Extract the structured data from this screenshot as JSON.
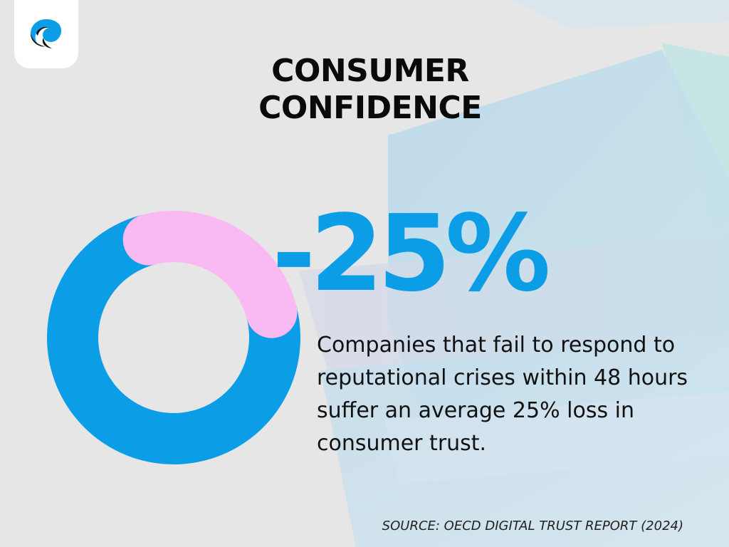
{
  "title_lines": [
    "CONSUMER",
    "CONFIDENCE"
  ],
  "big_stat": "-25%",
  "description": "Companies that fail to respond to reputational crises within 48 hours suffer an average 25% loss in consumer trust.",
  "source": "SOURCE: OECD DIGITAL TRUST REPORT (2024)",
  "chart_data": {
    "type": "pie",
    "variant": "donut",
    "slices": [
      {
        "label": "",
        "value": 25,
        "color": "#f9b9f3"
      },
      {
        "label": "",
        "value": 75,
        "color": "#0b9de6"
      }
    ]
  },
  "colors": {
    "accent": "#0b9de6",
    "highlight": "#f9b9f3",
    "background": "#e6e6e7",
    "text": "#0a0a0a"
  },
  "icons": {
    "logo": "brand-logo-icon"
  }
}
